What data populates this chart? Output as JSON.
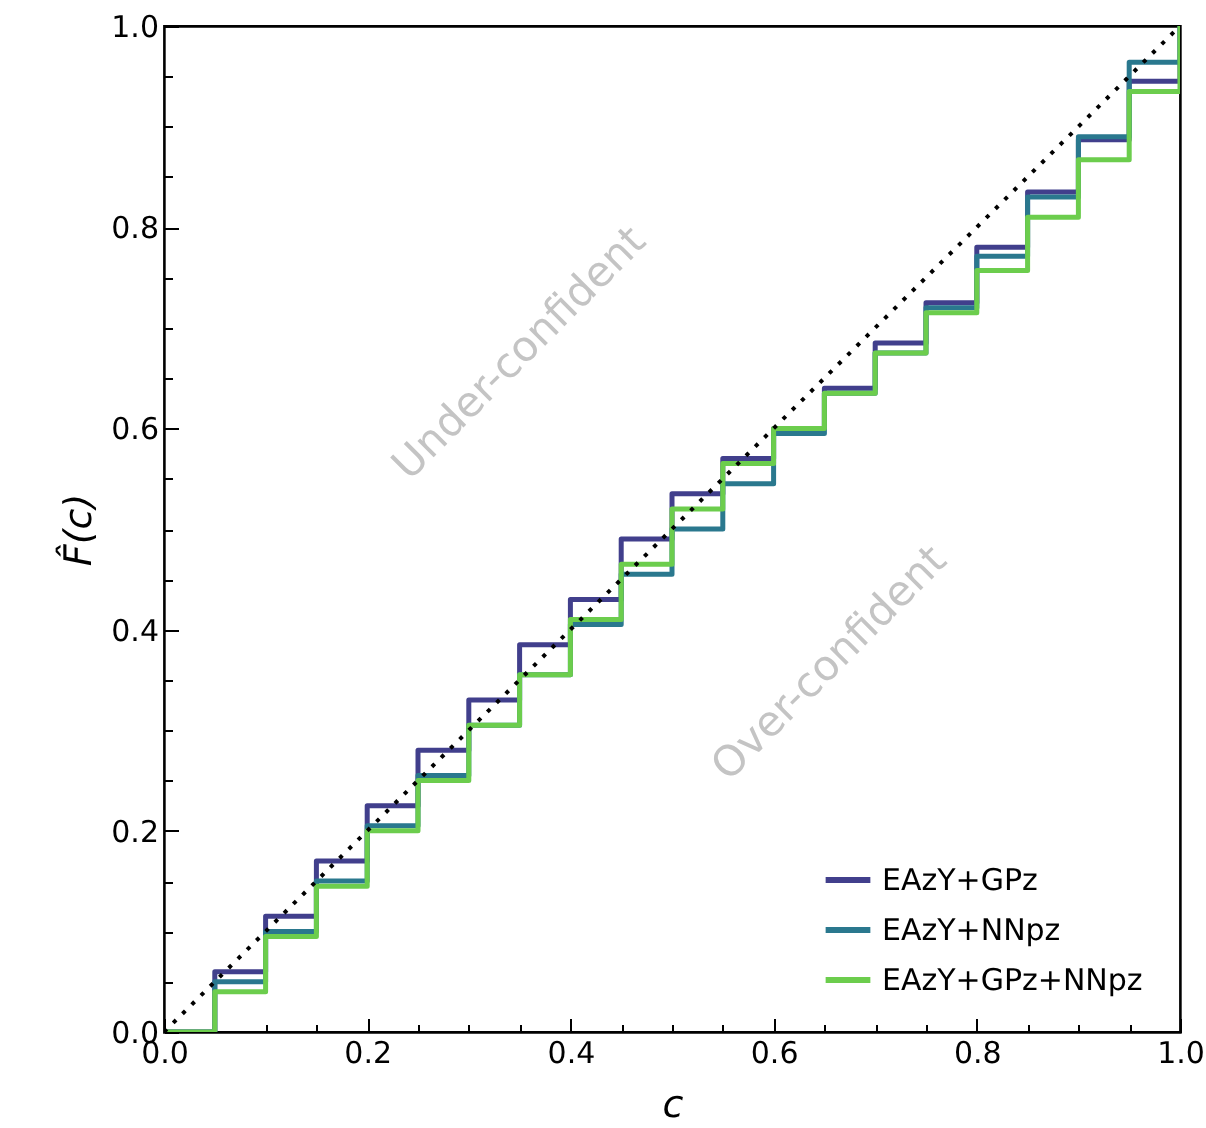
{
  "chart_data": {
    "type": "step",
    "xlabel": "c",
    "ylabel": "F̂(c)",
    "x": [
      0,
      0.05,
      0.1,
      0.15,
      0.2,
      0.25,
      0.3,
      0.35,
      0.4,
      0.45,
      0.5,
      0.55,
      0.6,
      0.65,
      0.7,
      0.75,
      0.8,
      0.85,
      0.9,
      0.95,
      1
    ],
    "series": [
      {
        "name": "EAzY+GPz",
        "color": "#413f8c",
        "values": [
          0,
          0.06,
          0.115,
          0.17,
          0.225,
          0.28,
          0.33,
          0.385,
          0.43,
          0.49,
          0.535,
          0.57,
          0.6,
          0.64,
          0.685,
          0.725,
          0.78,
          0.835,
          0.887,
          0.945,
          1
        ]
      },
      {
        "name": "EAzY+NNpz",
        "color": "#2a788e",
        "values": [
          0,
          0.05,
          0.1,
          0.15,
          0.205,
          0.255,
          0.305,
          0.355,
          0.405,
          0.455,
          0.5,
          0.545,
          0.595,
          0.635,
          0.675,
          0.72,
          0.771,
          0.83,
          0.89,
          0.964,
          1
        ]
      },
      {
        "name": "EAzY+GPz+NNpz",
        "color": "#6ccd4d",
        "values": [
          0,
          0.04,
          0.095,
          0.145,
          0.2,
          0.25,
          0.305,
          0.355,
          0.41,
          0.465,
          0.52,
          0.565,
          0.6,
          0.635,
          0.675,
          0.715,
          0.757,
          0.81,
          0.867,
          0.935,
          1
        ]
      },
      {
        "type": "line",
        "color": "#000000",
        "line_style": "dotted",
        "x": [
          0,
          1
        ],
        "values": [
          0,
          1
        ]
      }
    ],
    "xlim": [
      0,
      1
    ],
    "ylim": [
      0,
      1
    ],
    "xticks": [
      {
        "value": 0,
        "label": "0.0"
      },
      {
        "value": 0.05,
        "label": null
      },
      {
        "value": 0.1,
        "label": null
      },
      {
        "value": 0.15,
        "label": null
      },
      {
        "value": 0.2,
        "label": "0.2"
      },
      {
        "value": 0.25,
        "label": null
      },
      {
        "value": 0.3,
        "label": null
      },
      {
        "value": 0.35,
        "label": null
      },
      {
        "value": 0.4,
        "label": "0.4"
      },
      {
        "value": 0.45,
        "label": null
      },
      {
        "value": 0.5,
        "label": null
      },
      {
        "value": 0.55,
        "label": null
      },
      {
        "value": 0.6,
        "label": "0.6"
      },
      {
        "value": 0.65,
        "label": null
      },
      {
        "value": 0.7,
        "label": null
      },
      {
        "value": 0.75,
        "label": null
      },
      {
        "value": 0.8,
        "label": "0.8"
      },
      {
        "value": 0.85,
        "label": null
      },
      {
        "value": 0.9,
        "label": null
      },
      {
        "value": 0.95,
        "label": null
      },
      {
        "value": 1,
        "label": "1.0"
      }
    ],
    "yticks": [
      {
        "value": 0,
        "label": "0.0"
      },
      {
        "value": 0.05,
        "label": null
      },
      {
        "value": 0.1,
        "label": null
      },
      {
        "value": 0.15,
        "label": null
      },
      {
        "value": 0.2,
        "label": "0.2"
      },
      {
        "value": 0.25,
        "label": null
      },
      {
        "value": 0.3,
        "label": null
      },
      {
        "value": 0.35,
        "label": null
      },
      {
        "value": 0.4,
        "label": "0.4"
      },
      {
        "value": 0.45,
        "label": null
      },
      {
        "value": 0.5,
        "label": null
      },
      {
        "value": 0.55,
        "label": null
      },
      {
        "value": 0.6,
        "label": "0.6"
      },
      {
        "value": 0.65,
        "label": null
      },
      {
        "value": 0.7,
        "label": null
      },
      {
        "value": 0.75,
        "label": null
      },
      {
        "value": 0.8,
        "label": "0.8"
      },
      {
        "value": 0.85,
        "label": null
      },
      {
        "value": 0.9,
        "label": null
      },
      {
        "value": 0.95,
        "label": null
      },
      {
        "value": 1,
        "label": "1.0"
      }
    ],
    "annotations": [
      "Under-confident",
      "Over-confident"
    ],
    "legend": "bottom right",
    "grid": false,
    "marker": "none"
  }
}
